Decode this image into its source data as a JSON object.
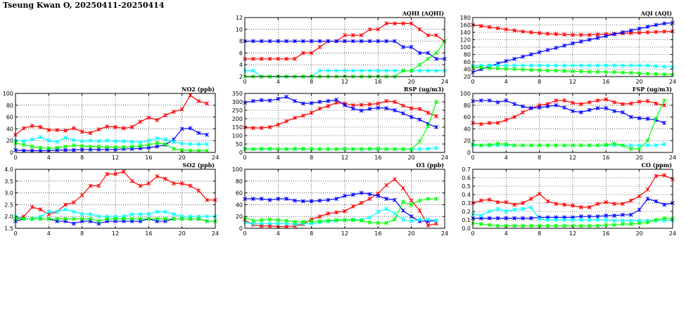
{
  "page": {
    "title": "Tseung Kwan O, 20250411-20250414"
  },
  "palette": {
    "red": "#ff0000",
    "blue": "#0000ff",
    "green": "#00ff00",
    "cyan": "#00ffff",
    "grid": "#000000"
  },
  "chart_data": [
    {
      "id": "aqhi",
      "type": "line",
      "title": "AQHI (AQHI)",
      "xlim": [
        0,
        24
      ],
      "ylim": [
        2,
        12
      ],
      "xticks": [
        0,
        4,
        8,
        12,
        16,
        20,
        24
      ],
      "yticks": [
        2,
        4,
        6,
        8,
        10,
        12
      ],
      "grid": true,
      "marker": "star",
      "series": [
        {
          "color": "red",
          "values": [
            5,
            5,
            5,
            5,
            5,
            5,
            5,
            6,
            6,
            7,
            8,
            8,
            9,
            9,
            9,
            10,
            10,
            11,
            11,
            11,
            11,
            10,
            9,
            9,
            8
          ]
        },
        {
          "color": "blue",
          "values": [
            8,
            8,
            8,
            8,
            8,
            8,
            8,
            8,
            8,
            8,
            8,
            8,
            8,
            8,
            8,
            8,
            8,
            8,
            8,
            7,
            7,
            6,
            6,
            5,
            5
          ]
        },
        {
          "color": "cyan",
          "values": [
            3,
            3,
            2,
            2,
            2,
            2,
            2,
            2,
            2,
            3,
            3,
            3,
            3,
            3,
            3,
            3,
            3,
            3,
            3,
            3,
            3,
            3,
            3,
            3,
            3
          ]
        },
        {
          "color": "green",
          "values": [
            2,
            2,
            2,
            2,
            2,
            2,
            2,
            2,
            2,
            2,
            2,
            2,
            2,
            2,
            2,
            2,
            2,
            2,
            2,
            3,
            3,
            4,
            5,
            6,
            8
          ]
        }
      ]
    },
    {
      "id": "aqi",
      "type": "line",
      "title": "AQI (AQI)",
      "xlim": [
        0,
        24
      ],
      "ylim": [
        20,
        180
      ],
      "xticks": [
        0,
        4,
        8,
        12,
        16,
        20,
        24
      ],
      "yticks": [
        20,
        40,
        60,
        80,
        100,
        120,
        140,
        160,
        180
      ],
      "grid": true,
      "marker": "star",
      "series": [
        {
          "color": "red",
          "values": [
            160,
            157,
            154,
            151,
            148,
            145,
            142,
            140,
            138,
            136,
            135,
            134,
            133,
            133,
            133,
            134,
            135,
            136,
            137,
            138,
            139,
            140,
            141,
            142,
            143
          ]
        },
        {
          "color": "blue",
          "values": [
            32,
            40,
            48,
            55,
            62,
            68,
            74,
            80,
            86,
            92,
            98,
            104,
            110,
            115,
            120,
            125,
            130,
            135,
            140,
            145,
            150,
            155,
            160,
            164,
            166
          ]
        },
        {
          "color": "cyan",
          "values": [
            50,
            50,
            50,
            50,
            50,
            50,
            50,
            50,
            50,
            50,
            50,
            50,
            50,
            50,
            50,
            50,
            50,
            50,
            50,
            50,
            50,
            50,
            48,
            47,
            46
          ]
        },
        {
          "color": "green",
          "values": [
            45,
            44,
            43,
            42,
            41,
            40,
            39,
            38,
            37,
            36,
            36,
            35,
            34,
            34,
            33,
            33,
            32,
            32,
            31,
            30,
            29,
            28,
            27,
            26,
            25
          ]
        }
      ]
    },
    {
      "id": "no2",
      "type": "line",
      "title": "NO2 (ppb)",
      "xlim": [
        0,
        24
      ],
      "ylim": [
        0,
        100
      ],
      "xticks": [
        0,
        4,
        8,
        12,
        16,
        20,
        24
      ],
      "yticks": [
        0,
        20,
        40,
        60,
        80,
        100
      ],
      "grid": true,
      "marker": "star",
      "series": [
        {
          "color": "red",
          "values": [
            30,
            41,
            45,
            43,
            38,
            38,
            37,
            41,
            35,
            33,
            39,
            44,
            43,
            41,
            43,
            52,
            59,
            55,
            63,
            69,
            73,
            97,
            87,
            83
          ]
        },
        {
          "color": "blue",
          "values": [
            4,
            3,
            3,
            3,
            3,
            4,
            4,
            4,
            5,
            5,
            5,
            5,
            5,
            6,
            6,
            7,
            8,
            10,
            13,
            22,
            40,
            41,
            33,
            30
          ]
        },
        {
          "color": "cyan",
          "values": [
            20,
            19,
            22,
            26,
            20,
            18,
            25,
            21,
            19,
            20,
            19,
            20,
            19,
            19,
            18,
            17,
            20,
            24,
            22,
            18,
            15,
            14,
            14,
            14
          ]
        },
        {
          "color": "green",
          "values": [
            16,
            13,
            10,
            8,
            7,
            8,
            10,
            12,
            11,
            10,
            10,
            9,
            9,
            9,
            10,
            11,
            13,
            16,
            14,
            6,
            4,
            3,
            3,
            3
          ]
        }
      ]
    },
    {
      "id": "rsp",
      "type": "line",
      "title": "RSP (ug/m3)",
      "xlim": [
        0,
        24
      ],
      "ylim": [
        0,
        350
      ],
      "xticks": [
        0,
        4,
        8,
        12,
        16,
        20,
        24
      ],
      "yticks": [
        0,
        50,
        100,
        150,
        200,
        250,
        300,
        350
      ],
      "grid": true,
      "marker": "star",
      "series": [
        {
          "color": "red",
          "values": [
            148,
            145,
            145,
            150,
            165,
            185,
            205,
            218,
            235,
            260,
            275,
            295,
            290,
            280,
            282,
            285,
            290,
            305,
            300,
            278,
            262,
            258,
            235,
            215
          ]
        },
        {
          "color": "blue",
          "values": [
            295,
            305,
            310,
            308,
            318,
            330,
            305,
            290,
            292,
            300,
            305,
            312,
            280,
            260,
            248,
            258,
            265,
            262,
            250,
            232,
            210,
            195,
            170,
            150
          ]
        },
        {
          "color": "cyan",
          "values": [
            22,
            20,
            20,
            20,
            20,
            20,
            20,
            20,
            20,
            20,
            20,
            20,
            20,
            20,
            20,
            20,
            20,
            20,
            20,
            20,
            20,
            20,
            22,
            26
          ]
        },
        {
          "color": "green",
          "values": [
            20,
            20,
            22,
            22,
            20,
            20,
            22,
            22,
            20,
            20,
            20,
            20,
            22,
            20,
            20,
            22,
            22,
            20,
            20,
            20,
            18,
            65,
            155,
            300
          ]
        }
      ]
    },
    {
      "id": "fsp",
      "type": "line",
      "title": "FSP (ug/m3)",
      "xlim": [
        0,
        24
      ],
      "ylim": [
        0,
        100
      ],
      "xticks": [
        0,
        4,
        8,
        12,
        16,
        20,
        24
      ],
      "yticks": [
        0,
        20,
        40,
        60,
        80,
        100
      ],
      "grid": true,
      "marker": "star",
      "series": [
        {
          "color": "red",
          "values": [
            50,
            48,
            50,
            50,
            55,
            60,
            68,
            75,
            80,
            82,
            88,
            88,
            84,
            82,
            85,
            88,
            90,
            85,
            82,
            83,
            86,
            87,
            83,
            80
          ]
        },
        {
          "color": "blue",
          "values": [
            87,
            88,
            88,
            85,
            88,
            82,
            78,
            75,
            76,
            78,
            80,
            76,
            70,
            68,
            72,
            75,
            75,
            70,
            68,
            60,
            58,
            57,
            55,
            50
          ]
        },
        {
          "color": "cyan",
          "values": [
            12,
            12,
            12,
            12,
            12,
            12,
            12,
            12,
            12,
            12,
            12,
            12,
            12,
            12,
            12,
            12,
            12,
            12,
            12,
            12,
            12,
            12,
            12,
            14
          ]
        },
        {
          "color": "green",
          "values": [
            14,
            12,
            13,
            15,
            14,
            12,
            12,
            12,
            12,
            12,
            12,
            12,
            12,
            12,
            12,
            12,
            13,
            15,
            12,
            6,
            6,
            20,
            58,
            88
          ]
        }
      ]
    },
    {
      "id": "so2",
      "type": "line",
      "title": "SO2 (ppb)",
      "xlim": [
        0,
        24
      ],
      "ylim": [
        1.5,
        4.0
      ],
      "xticks": [
        0,
        4,
        8,
        12,
        16,
        20,
        24
      ],
      "yticks": [
        1.5,
        2.0,
        2.5,
        3.0,
        3.5,
        4.0
      ],
      "grid": true,
      "marker": "star",
      "series": [
        {
          "color": "red",
          "values": [
            1.9,
            2.0,
            2.4,
            2.3,
            2.1,
            2.2,
            2.5,
            2.6,
            2.9,
            3.3,
            3.3,
            3.8,
            3.8,
            3.9,
            3.5,
            3.3,
            3.4,
            3.7,
            3.6,
            3.4,
            3.4,
            3.3,
            3.1,
            2.7,
            2.7
          ]
        },
        {
          "color": "blue",
          "values": [
            1.8,
            1.9,
            1.9,
            1.9,
            1.9,
            1.8,
            1.8,
            1.7,
            1.8,
            1.8,
            1.7,
            1.8,
            1.8,
            1.8,
            1.8,
            1.8,
            1.9,
            1.8,
            1.8,
            1.9,
            1.9,
            1.9,
            1.9,
            1.8,
            1.8
          ]
        },
        {
          "color": "cyan",
          "values": [
            2.0,
            1.9,
            1.9,
            2.0,
            2.2,
            2.2,
            2.3,
            2.2,
            2.1,
            2.1,
            2.0,
            2.0,
            2.0,
            2.0,
            2.1,
            2.1,
            2.1,
            2.2,
            2.2,
            2.1,
            2.0,
            2.0,
            2.0,
            2.0,
            2.0
          ]
        },
        {
          "color": "green",
          "values": [
            1.9,
            1.9,
            1.9,
            1.9,
            1.9,
            1.9,
            1.9,
            1.9,
            1.9,
            1.9,
            1.8,
            1.9,
            1.9,
            1.9,
            1.9,
            1.9,
            1.9,
            1.9,
            1.9,
            1.9,
            1.9,
            1.9,
            1.9,
            1.8,
            1.8
          ]
        }
      ]
    },
    {
      "id": "o3",
      "type": "line",
      "title": "O3 (ppb)",
      "xlim": [
        0,
        24
      ],
      "ylim": [
        0,
        100
      ],
      "xticks": [
        0,
        4,
        8,
        12,
        16,
        20,
        24
      ],
      "yticks": [
        0,
        20,
        40,
        60,
        80,
        100
      ],
      "grid": true,
      "marker": "star",
      "series": [
        {
          "color": "red",
          "values": [
            14,
            6,
            4,
            4,
            3,
            3,
            4,
            7,
            15,
            20,
            25,
            27,
            29,
            37,
            43,
            50,
            59,
            73,
            83,
            68,
            47,
            30,
            5,
            8
          ]
        },
        {
          "color": "blue",
          "values": [
            50,
            50,
            50,
            48,
            50,
            50,
            47,
            46,
            46,
            47,
            48,
            50,
            55,
            57,
            60,
            58,
            55,
            50,
            48,
            30,
            20,
            12,
            12,
            13
          ]
        },
        {
          "color": "cyan",
          "values": [
            10,
            8,
            8,
            8,
            8,
            8,
            7,
            8,
            8,
            10,
            12,
            13,
            14,
            15,
            14,
            18,
            28,
            33,
            25,
            15,
            12,
            15,
            15,
            13
          ]
        },
        {
          "color": "green",
          "values": [
            18,
            13,
            14,
            15,
            14,
            13,
            11,
            11,
            12,
            12,
            13,
            14,
            14,
            14,
            13,
            10,
            9,
            9,
            15,
            45,
            40,
            47,
            50,
            50
          ]
        }
      ]
    },
    {
      "id": "co",
      "type": "line",
      "title": "CO (ppm)",
      "xlim": [
        0,
        24
      ],
      "ylim": [
        0.0,
        0.7
      ],
      "xticks": [
        0,
        4,
        8,
        12,
        16,
        20,
        24
      ],
      "yticks": [
        0.0,
        0.1,
        0.2,
        0.3,
        0.4,
        0.5,
        0.6,
        0.7
      ],
      "grid": true,
      "marker": "star",
      "series": [
        {
          "color": "red",
          "values": [
            0.3,
            0.33,
            0.34,
            0.31,
            0.31,
            0.28,
            0.3,
            0.35,
            0.41,
            0.32,
            0.29,
            0.28,
            0.27,
            0.25,
            0.25,
            0.29,
            0.31,
            0.29,
            0.29,
            0.33,
            0.38,
            0.46,
            0.62,
            0.63,
            0.58
          ]
        },
        {
          "color": "blue",
          "values": [
            0.12,
            0.12,
            0.12,
            0.12,
            0.12,
            0.12,
            0.12,
            0.12,
            0.13,
            0.13,
            0.13,
            0.13,
            0.13,
            0.14,
            0.14,
            0.14,
            0.15,
            0.15,
            0.16,
            0.16,
            0.22,
            0.35,
            0.32,
            0.28,
            0.3
          ]
        },
        {
          "color": "cyan",
          "values": [
            0.17,
            0.15,
            0.2,
            0.23,
            0.2,
            0.22,
            0.23,
            0.25,
            0.11,
            0.1,
            0.1,
            0.1,
            0.1,
            0.1,
            0.1,
            0.1,
            0.1,
            0.09,
            0.09,
            0.09,
            0.09,
            0.09,
            0.09,
            0.09,
            0.09
          ]
        },
        {
          "color": "green",
          "values": [
            0.06,
            0.05,
            0.04,
            0.03,
            0.03,
            0.03,
            0.03,
            0.03,
            0.03,
            0.03,
            0.03,
            0.03,
            0.03,
            0.03,
            0.03,
            0.03,
            0.04,
            0.04,
            0.05,
            0.05,
            0.06,
            0.07,
            0.1,
            0.12,
            0.12
          ]
        }
      ]
    }
  ]
}
